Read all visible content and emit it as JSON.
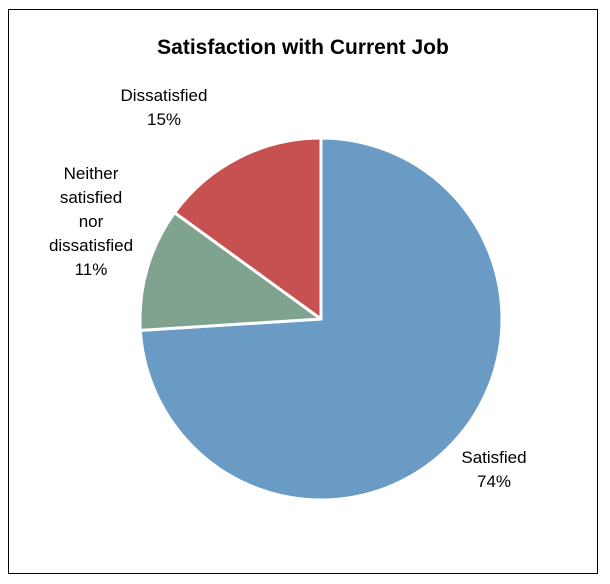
{
  "chart_data": {
    "type": "pie",
    "title": "Satisfaction with Current Job",
    "slices": [
      {
        "label_lines": [
          "Satisfied"
        ],
        "percent_label": "74%",
        "value": 74,
        "color": "#6a9bc5"
      },
      {
        "label_lines": [
          "Neither",
          "satisfied",
          "nor",
          "dissatisfied"
        ],
        "percent_label": "11%",
        "value": 11,
        "color": "#7fa38f"
      },
      {
        "label_lines": [
          "Dissatisfied"
        ],
        "percent_label": "15%",
        "value": 15,
        "color": "#c65150"
      }
    ],
    "start_angle": "12 o'clock",
    "direction": "clockwise",
    "legend": "none"
  }
}
